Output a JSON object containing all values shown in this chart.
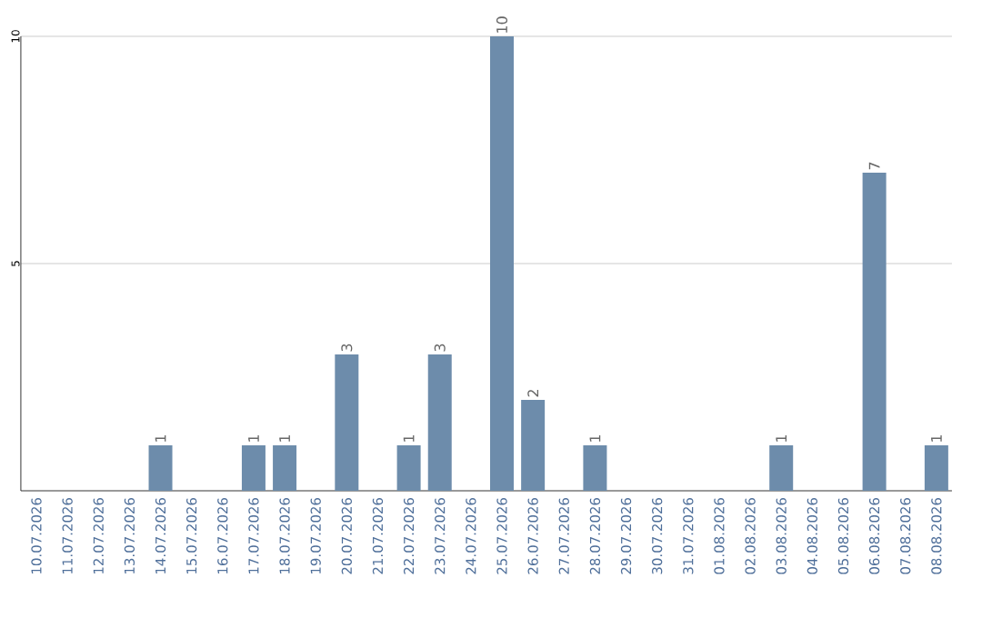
{
  "chart_data": {
    "type": "bar",
    "categories": [
      "10.07.2026",
      "11.07.2026",
      "12.07.2026",
      "13.07.2026",
      "14.07.2026",
      "15.07.2026",
      "16.07.2026",
      "17.07.2026",
      "18.07.2026",
      "19.07.2026",
      "20.07.2026",
      "21.07.2026",
      "22.07.2026",
      "23.07.2026",
      "24.07.2026",
      "25.07.2026",
      "26.07.2026",
      "27.07.2026",
      "28.07.2026",
      "29.07.2026",
      "30.07.2026",
      "31.07.2026",
      "01.08.2026",
      "02.08.2026",
      "03.08.2026",
      "04.08.2026",
      "05.08.2026",
      "06.08.2026",
      "07.08.2026",
      "08.08.2026"
    ],
    "values": [
      0,
      0,
      0,
      0,
      1,
      0,
      0,
      1,
      1,
      0,
      3,
      0,
      1,
      3,
      0,
      10,
      2,
      0,
      1,
      0,
      0,
      0,
      0,
      0,
      1,
      0,
      0,
      7,
      0,
      1
    ],
    "value_labels": [
      null,
      null,
      null,
      null,
      "1",
      null,
      null,
      "1",
      "1",
      null,
      "3",
      null,
      "1",
      "3",
      null,
      "10",
      "2",
      null,
      "1",
      null,
      null,
      null,
      null,
      null,
      "1",
      null,
      null,
      "7",
      null,
      "1"
    ],
    "color": "#6d8cab",
    "ylim": [
      0,
      10
    ],
    "yticks": [
      5,
      10
    ],
    "grid": "y"
  }
}
